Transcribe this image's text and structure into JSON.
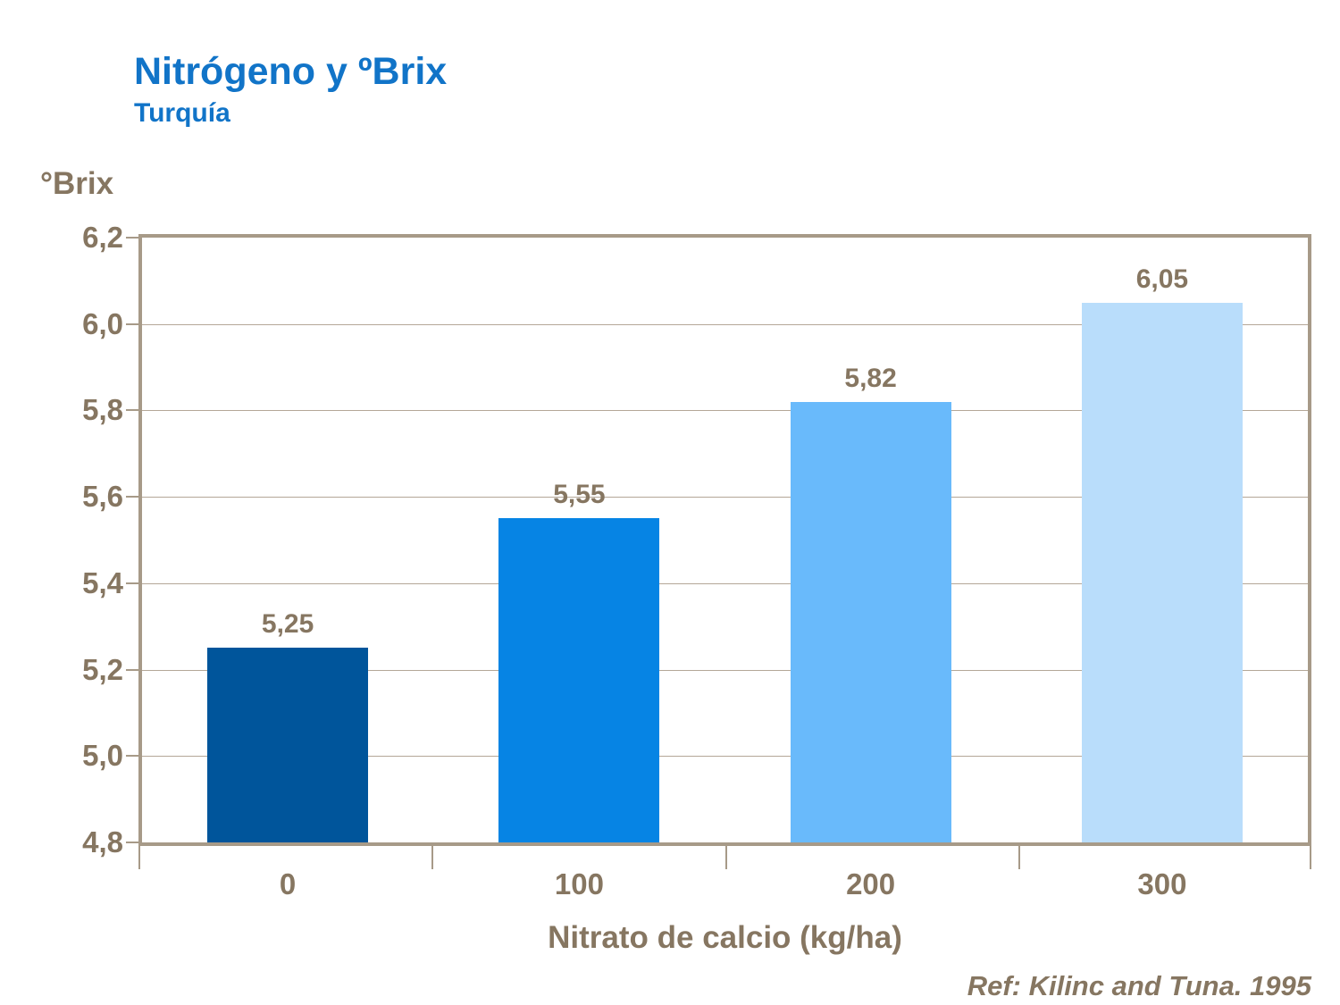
{
  "page": {
    "title": "Nitrógeno y ºBrix",
    "subtitle": "Turquía",
    "reference": "Ref: Kilinc and Tuna. 1995"
  },
  "chart_data": {
    "type": "bar",
    "title": "Nitrógeno y ºBrix",
    "subtitle": "Turquía",
    "xlabel": "Nitrato de calcio (kg/ha)",
    "ylabel": "°Brix",
    "categories": [
      "0",
      "100",
      "200",
      "300"
    ],
    "values": [
      5.25,
      5.55,
      5.82,
      6.05
    ],
    "value_labels": [
      "5,25",
      "5,55",
      "5,82",
      "6,05"
    ],
    "bar_colors": [
      "#00559B",
      "#0684E4",
      "#69BAFB",
      "#B9DDFB"
    ],
    "ylim": [
      4.8,
      6.2
    ],
    "ytick_step": 0.2,
    "ytick_labels": [
      "4,8",
      "5,0",
      "5,2",
      "5,4",
      "5,6",
      "5,8",
      "6,0",
      "6,2"
    ],
    "grid": true,
    "legend_position": "none",
    "reference": "Ref: Kilinc and Tuna. 1995",
    "colors": {
      "title_text": "#1174C8",
      "axis_text": "#867661",
      "grid_line": "#B4A798",
      "axis_line": "#A79A88"
    }
  }
}
